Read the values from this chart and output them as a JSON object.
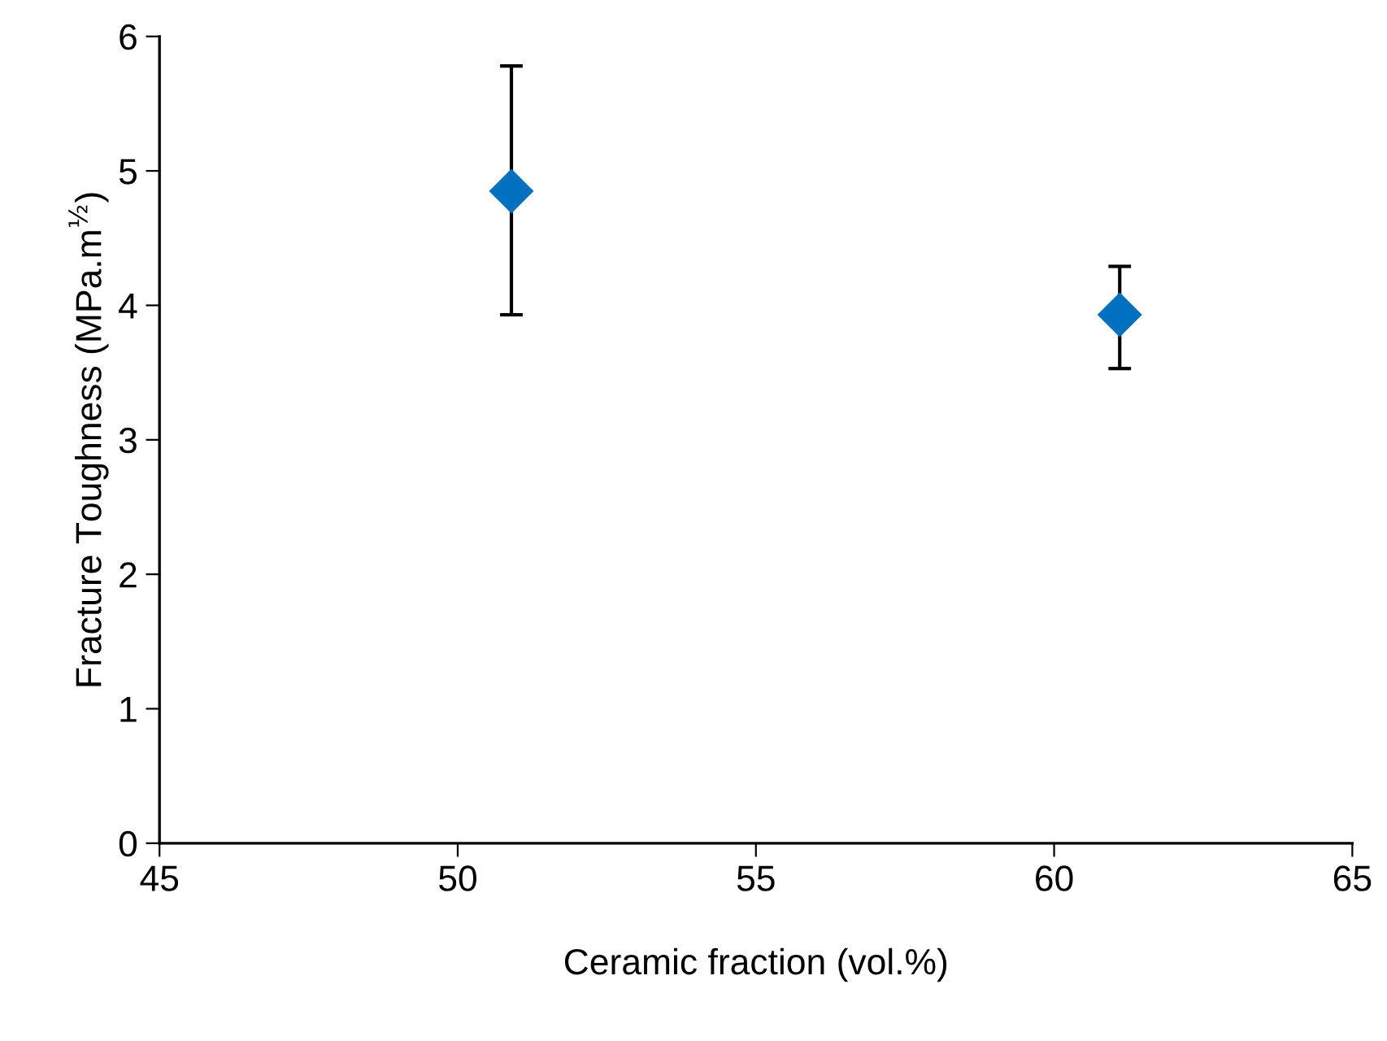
{
  "chart_data": {
    "type": "scatter",
    "xlabel": "Ceramic fraction (vol.%)",
    "ylabel": "Fracture Toughness (MPa.m$^{½}$)",
    "x": [
      50.9,
      61.1
    ],
    "series": [
      {
        "color": "#0070c0",
        "values": [
          4.85,
          3.93
        ],
        "errors": [
          [
            3.93,
            5.78
          ],
          [
            3.53,
            4.29
          ]
        ]
      }
    ],
    "marker": "diamond",
    "grid": false,
    "legend": false,
    "xlim": [
      45,
      65
    ],
    "xticks": [
      45,
      50,
      55,
      60,
      65
    ],
    "ylim": [
      0,
      6
    ],
    "yticks": [
      0,
      1,
      2,
      3,
      4,
      5,
      6
    ]
  }
}
